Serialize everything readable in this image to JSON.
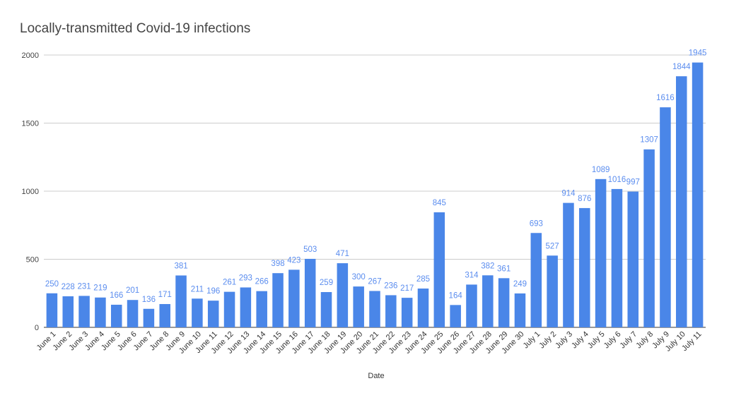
{
  "chart_data": {
    "type": "bar",
    "title": "Locally-transmitted Covid-19 infections",
    "xlabel": "Date",
    "ylabel": "",
    "ylim": [
      0,
      2000
    ],
    "yticks": [
      0,
      500,
      1000,
      1500,
      2000
    ],
    "grid": true,
    "legend": "none",
    "bar_color": "#4a86e8",
    "label_color": "#5b8def",
    "categories": [
      "June 1",
      "June 2",
      "June 3",
      "June 4",
      "June 5",
      "June 6",
      "June 7",
      "June 8",
      "June 9",
      "June 10",
      "June 11",
      "June 12",
      "June 13",
      "June 14",
      "June 15",
      "June 16",
      "June 17",
      "June 18",
      "June 19",
      "June 20",
      "June 21",
      "June 22",
      "June 23",
      "June 24",
      "June 25",
      "June 26",
      "June 27",
      "June 28",
      "June 29",
      "June 30",
      "July 1",
      "July 2",
      "July 3",
      "July 4",
      "July 5",
      "July 6",
      "July 7",
      "July 8",
      "July 9",
      "July 10",
      "July 11"
    ],
    "values": [
      250,
      228,
      231,
      219,
      166,
      201,
      136,
      171,
      381,
      211,
      196,
      261,
      293,
      266,
      398,
      423,
      503,
      259,
      471,
      300,
      267,
      236,
      217,
      285,
      845,
      164,
      314,
      382,
      361,
      249,
      693,
      527,
      914,
      876,
      1089,
      1016,
      997,
      1307,
      1616,
      1844,
      1945
    ]
  }
}
